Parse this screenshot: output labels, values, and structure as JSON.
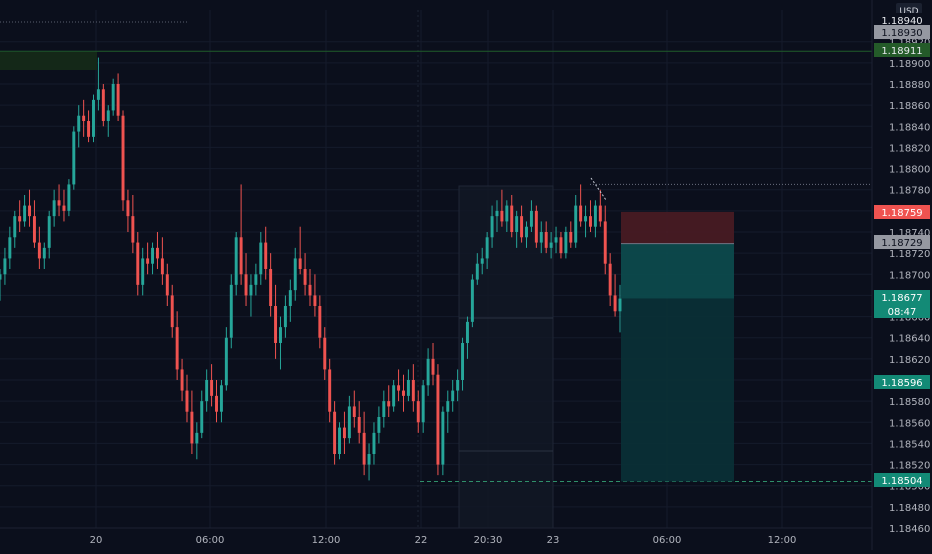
{
  "app": {
    "currency": "USD"
  },
  "colors": {
    "background": "#0b0f1c",
    "up": "#26a69a",
    "down": "#ef5350",
    "grid": "#151b2b",
    "axis_text": "#b2b5be",
    "stop_zone": "#4a1c24",
    "target_zone": "#0d4a4c",
    "target_zone_lower": "#0a2f36",
    "price_line": "#1f5d2a",
    "range_box": "#121826"
  },
  "chart_data": {
    "type": "candlestick",
    "symbol_currency": "USD",
    "ylim": [
      1.1846,
      1.1895
    ],
    "yticks": [
      "1.18920",
      "1.18900",
      "1.18880",
      "1.18860",
      "1.18840",
      "1.18820",
      "1.18800",
      "1.18780",
      "1.18760",
      "1.18740",
      "1.18720",
      "1.18700",
      "1.18680",
      "1.18660",
      "1.18640",
      "1.18620",
      "1.18600",
      "1.18580",
      "1.18560",
      "1.18540",
      "1.18520",
      "1.18500",
      "1.18480",
      "1.18460"
    ],
    "xticks": [
      "20",
      "06:00",
      "12:00",
      "22",
      "20:30",
      "23",
      "06:00",
      "12:00"
    ],
    "price_labels": [
      {
        "text": "1.18940",
        "style": "white"
      },
      {
        "text": "1.18930",
        "style": "gray"
      },
      {
        "text": "1.18911",
        "style": "green"
      },
      {
        "text": "1.18759",
        "style": "red"
      },
      {
        "text": "1.18729",
        "style": "gray"
      },
      {
        "text": "1.18677",
        "style": "teal"
      },
      {
        "text": "08:47",
        "style": "teal"
      },
      {
        "text": "1.18596",
        "style": "teal"
      },
      {
        "text": "1.18504",
        "style": "teal"
      }
    ],
    "position": {
      "type": "long",
      "entry": 1.18729,
      "stop": 1.18759,
      "target": 1.18504,
      "current": 1.18677
    },
    "candles": [
      [
        1.18695,
        1.18705,
        1.18675,
        1.187
      ],
      [
        1.187,
        1.18725,
        1.1869,
        1.18715
      ],
      [
        1.18715,
        1.18745,
        1.18705,
        1.18735
      ],
      [
        1.18735,
        1.1876,
        1.18725,
        1.18755
      ],
      [
        1.18755,
        1.1877,
        1.1874,
        1.1875
      ],
      [
        1.1875,
        1.18775,
        1.18745,
        1.18765
      ],
      [
        1.18765,
        1.1878,
        1.18745,
        1.18755
      ],
      [
        1.18755,
        1.1877,
        1.18725,
        1.1873
      ],
      [
        1.1873,
        1.18745,
        1.18705,
        1.18715
      ],
      [
        1.18715,
        1.1873,
        1.18705,
        1.18725
      ],
      [
        1.18725,
        1.1876,
        1.18715,
        1.18755
      ],
      [
        1.18755,
        1.1878,
        1.18745,
        1.1877
      ],
      [
        1.1877,
        1.18785,
        1.18755,
        1.18765
      ],
      [
        1.18765,
        1.1878,
        1.1875,
        1.1876
      ],
      [
        1.1876,
        1.1879,
        1.18755,
        1.18785
      ],
      [
        1.18785,
        1.1884,
        1.1878,
        1.18835
      ],
      [
        1.18835,
        1.1886,
        1.1882,
        1.1885
      ],
      [
        1.1885,
        1.18865,
        1.1883,
        1.18845
      ],
      [
        1.18845,
        1.18855,
        1.18825,
        1.1883
      ],
      [
        1.1883,
        1.1887,
        1.18825,
        1.18865
      ],
      [
        1.18865,
        1.18905,
        1.18855,
        1.18875
      ],
      [
        1.18875,
        1.1888,
        1.1884,
        1.18845
      ],
      [
        1.18845,
        1.1886,
        1.1883,
        1.18855
      ],
      [
        1.18855,
        1.18885,
        1.1885,
        1.1888
      ],
      [
        1.1888,
        1.1889,
        1.18845,
        1.1885
      ],
      [
        1.1885,
        1.18855,
        1.1876,
        1.1877
      ],
      [
        1.1877,
        1.1878,
        1.1874,
        1.18755
      ],
      [
        1.18755,
        1.18775,
        1.1872,
        1.1873
      ],
      [
        1.1873,
        1.1874,
        1.1868,
        1.1869
      ],
      [
        1.1869,
        1.18725,
        1.1868,
        1.18715
      ],
      [
        1.18715,
        1.1873,
        1.187,
        1.1871
      ],
      [
        1.1871,
        1.1873,
        1.187,
        1.18725
      ],
      [
        1.18725,
        1.1874,
        1.18705,
        1.18715
      ],
      [
        1.18715,
        1.18735,
        1.1869,
        1.187
      ],
      [
        1.187,
        1.1871,
        1.1867,
        1.1868
      ],
      [
        1.1868,
        1.1869,
        1.1864,
        1.1865
      ],
      [
        1.1865,
        1.18665,
        1.186,
        1.1861
      ],
      [
        1.1861,
        1.1862,
        1.1858,
        1.1859
      ],
      [
        1.1859,
        1.18605,
        1.1856,
        1.1857
      ],
      [
        1.1857,
        1.1859,
        1.1853,
        1.1854
      ],
      [
        1.1854,
        1.1856,
        1.18525,
        1.1855
      ],
      [
        1.1855,
        1.1859,
        1.18545,
        1.1858
      ],
      [
        1.1858,
        1.1861,
        1.1857,
        1.186
      ],
      [
        1.186,
        1.18615,
        1.18575,
        1.18585
      ],
      [
        1.18585,
        1.186,
        1.1856,
        1.1857
      ],
      [
        1.1857,
        1.186,
        1.1856,
        1.18595
      ],
      [
        1.18595,
        1.1865,
        1.1859,
        1.1864
      ],
      [
        1.1864,
        1.187,
        1.1863,
        1.1869
      ],
      [
        1.1869,
        1.1874,
        1.1868,
        1.18735
      ],
      [
        1.18735,
        1.18785,
        1.1869,
        1.187
      ],
      [
        1.187,
        1.1872,
        1.1867,
        1.1868
      ],
      [
        1.1868,
        1.187,
        1.1866,
        1.1869
      ],
      [
        1.1869,
        1.1871,
        1.1868,
        1.187
      ],
      [
        1.187,
        1.1874,
        1.1869,
        1.1873
      ],
      [
        1.1873,
        1.18745,
        1.18695,
        1.18705
      ],
      [
        1.18705,
        1.1872,
        1.1866,
        1.1867
      ],
      [
        1.1867,
        1.1869,
        1.1862,
        1.18635
      ],
      [
        1.18635,
        1.1866,
        1.1861,
        1.1865
      ],
      [
        1.1865,
        1.1868,
        1.1864,
        1.1867
      ],
      [
        1.1867,
        1.18695,
        1.18655,
        1.18685
      ],
      [
        1.18685,
        1.18725,
        1.18675,
        1.18715
      ],
      [
        1.18715,
        1.18745,
        1.187,
        1.18705
      ],
      [
        1.18705,
        1.1872,
        1.1868,
        1.1869
      ],
      [
        1.1869,
        1.18705,
        1.1867,
        1.1868
      ],
      [
        1.1868,
        1.187,
        1.1866,
        1.1867
      ],
      [
        1.1867,
        1.1868,
        1.1863,
        1.1864
      ],
      [
        1.1864,
        1.1865,
        1.186,
        1.1861
      ],
      [
        1.1861,
        1.1862,
        1.1856,
        1.1857
      ],
      [
        1.1857,
        1.1858,
        1.1852,
        1.1853
      ],
      [
        1.1853,
        1.1856,
        1.18525,
        1.18555
      ],
      [
        1.18555,
        1.1857,
        1.1853,
        1.18545
      ],
      [
        1.18545,
        1.18585,
        1.1854,
        1.18575
      ],
      [
        1.18575,
        1.1859,
        1.18555,
        1.18565
      ],
      [
        1.18565,
        1.1858,
        1.1854,
        1.1855
      ],
      [
        1.1855,
        1.1857,
        1.1851,
        1.1852
      ],
      [
        1.1852,
        1.1854,
        1.18505,
        1.1853
      ],
      [
        1.1853,
        1.1856,
        1.1852,
        1.1855
      ],
      [
        1.1855,
        1.18575,
        1.1854,
        1.18565
      ],
      [
        1.18565,
        1.1859,
        1.18555,
        1.1858
      ],
      [
        1.1858,
        1.18595,
        1.18565,
        1.18575
      ],
      [
        1.18575,
        1.186,
        1.1857,
        1.18595
      ],
      [
        1.18595,
        1.1861,
        1.1858,
        1.1859
      ],
      [
        1.1859,
        1.18605,
        1.1857,
        1.18585
      ],
      [
        1.18585,
        1.1861,
        1.1858,
        1.186
      ],
      [
        1.186,
        1.18615,
        1.1857,
        1.1858
      ],
      [
        1.1858,
        1.1859,
        1.1855,
        1.1856
      ],
      [
        1.1856,
        1.186,
        1.1855,
        1.18595
      ],
      [
        1.18595,
        1.1863,
        1.18585,
        1.1862
      ],
      [
        1.1862,
        1.18635,
        1.18595,
        1.18605
      ],
      [
        1.18605,
        1.18615,
        1.1851,
        1.1852
      ],
      [
        1.1852,
        1.18575,
        1.1851,
        1.1857
      ],
      [
        1.1857,
        1.1859,
        1.1855,
        1.1858
      ],
      [
        1.1858,
        1.186,
        1.1857,
        1.1859
      ],
      [
        1.1859,
        1.1861,
        1.1858,
        1.186
      ],
      [
        1.186,
        1.1864,
        1.1859,
        1.18635
      ],
      [
        1.18635,
        1.1866,
        1.1862,
        1.18655
      ],
      [
        1.18655,
        1.187,
        1.1865,
        1.18695
      ],
      [
        1.18695,
        1.1872,
        1.1869,
        1.1871
      ],
      [
        1.1871,
        1.18725,
        1.187,
        1.18715
      ],
      [
        1.18715,
        1.1874,
        1.18705,
        1.18735
      ],
      [
        1.18735,
        1.18765,
        1.18725,
        1.18755
      ],
      [
        1.18755,
        1.1877,
        1.1874,
        1.1876
      ],
      [
        1.1876,
        1.1878,
        1.18745,
        1.1875
      ],
      [
        1.1875,
        1.1877,
        1.1874,
        1.18765
      ],
      [
        1.18765,
        1.18775,
        1.18735,
        1.1874
      ],
      [
        1.1874,
        1.1876,
        1.18725,
        1.18755
      ],
      [
        1.18755,
        1.18765,
        1.1873,
        1.18735
      ],
      [
        1.18735,
        1.1875,
        1.18725,
        1.18745
      ],
      [
        1.18745,
        1.1877,
        1.1874,
        1.1876
      ],
      [
        1.1876,
        1.18765,
        1.18725,
        1.1873
      ],
      [
        1.1873,
        1.1875,
        1.1872,
        1.1874
      ],
      [
        1.1874,
        1.1875,
        1.1872,
        1.18725
      ],
      [
        1.18725,
        1.1874,
        1.18715,
        1.1873
      ],
      [
        1.1873,
        1.18745,
        1.1872,
        1.18735
      ],
      [
        1.18735,
        1.1874,
        1.18715,
        1.1872
      ],
      [
        1.1872,
        1.18745,
        1.18715,
        1.1874
      ],
      [
        1.1874,
        1.1875,
        1.18725,
        1.1873
      ],
      [
        1.1873,
        1.18775,
        1.18725,
        1.18765
      ],
      [
        1.18765,
        1.18785,
        1.18745,
        1.1875
      ],
      [
        1.1875,
        1.18765,
        1.18735,
        1.18755
      ],
      [
        1.18755,
        1.1877,
        1.1874,
        1.18745
      ],
      [
        1.18745,
        1.1877,
        1.18735,
        1.18765
      ],
      [
        1.18765,
        1.1878,
        1.18745,
        1.1875
      ],
      [
        1.1875,
        1.18765,
        1.187,
        1.1871
      ],
      [
        1.1871,
        1.1872,
        1.1867,
        1.1868
      ],
      [
        1.1868,
        1.187,
        1.1866,
        1.18665
      ],
      [
        1.18665,
        1.1869,
        1.18645,
        1.18677
      ]
    ]
  }
}
